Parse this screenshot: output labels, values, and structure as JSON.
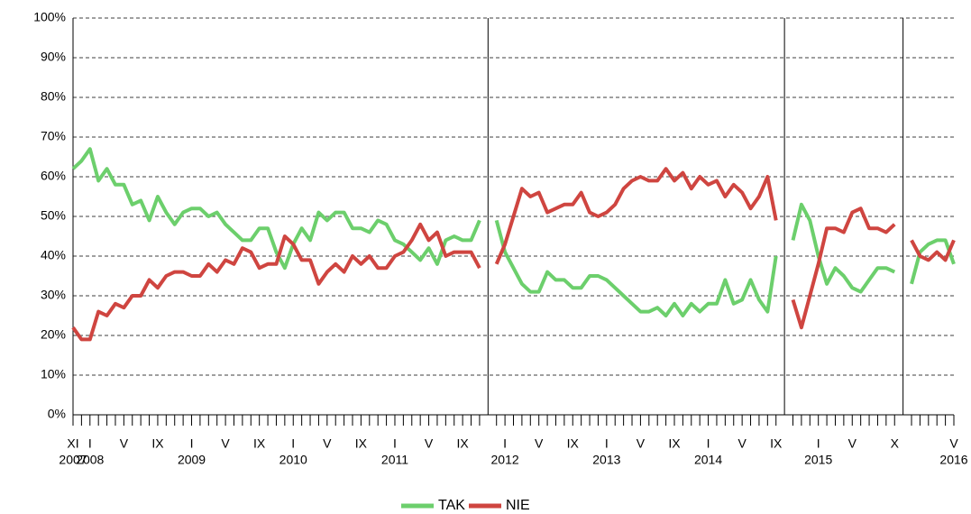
{
  "chart_data": {
    "type": "line",
    "categories": [
      "XI",
      null,
      "I",
      null,
      null,
      null,
      "V",
      null,
      null,
      null,
      "IX",
      null,
      null,
      null,
      "I",
      null,
      null,
      null,
      "V",
      null,
      null,
      null,
      "IX",
      null,
      null,
      null,
      "I",
      null,
      null,
      null,
      "V",
      null,
      null,
      null,
      "IX",
      null,
      null,
      null,
      "I",
      null,
      null,
      null,
      "V",
      null,
      null,
      null,
      "IX",
      null,
      null,
      null,
      null,
      "I",
      null,
      null,
      null,
      "V",
      null,
      null,
      null,
      "IX",
      null,
      null,
      null,
      "I",
      null,
      null,
      null,
      "V",
      null,
      null,
      null,
      "IX",
      null,
      null,
      null,
      "I",
      null,
      null,
      null,
      "V",
      null,
      null,
      null,
      "IX",
      null,
      null,
      null,
      null,
      "I",
      null,
      null,
      null,
      "V",
      null,
      null,
      null,
      null,
      "X",
      null,
      null,
      null,
      null,
      null,
      null,
      "V"
    ],
    "category_years": [
      "2007",
      null,
      "2008",
      null,
      null,
      null,
      null,
      null,
      null,
      null,
      null,
      null,
      null,
      null,
      "2009",
      null,
      null,
      null,
      null,
      null,
      null,
      null,
      null,
      null,
      null,
      null,
      "2010",
      null,
      null,
      null,
      null,
      null,
      null,
      null,
      null,
      null,
      null,
      null,
      "2011",
      null,
      null,
      null,
      null,
      null,
      null,
      null,
      null,
      null,
      null,
      null,
      null,
      "2012",
      null,
      null,
      null,
      null,
      null,
      null,
      null,
      null,
      null,
      null,
      null,
      "2013",
      null,
      null,
      null,
      null,
      null,
      null,
      null,
      null,
      null,
      null,
      null,
      "2014",
      null,
      null,
      null,
      null,
      null,
      null,
      null,
      null,
      null,
      null,
      null,
      null,
      "2015",
      null,
      null,
      null,
      null,
      null,
      null,
      null,
      null,
      null,
      null,
      null,
      null,
      null,
      null,
      null,
      "2016"
    ],
    "series": [
      {
        "name": "TAK",
        "color": "#6ccf6c",
        "values": [
          62,
          64,
          67,
          59,
          62,
          58,
          58,
          53,
          54,
          49,
          55,
          51,
          48,
          51,
          52,
          52,
          50,
          51,
          48,
          46,
          44,
          44,
          47,
          47,
          41,
          37,
          43,
          47,
          44,
          51,
          49,
          51,
          51,
          47,
          47,
          46,
          49,
          48,
          44,
          43,
          41,
          39,
          42,
          38,
          44,
          45,
          44,
          44,
          49,
          null,
          49,
          41,
          37,
          33,
          31,
          31,
          36,
          34,
          34,
          32,
          32,
          35,
          35,
          34,
          32,
          30,
          28,
          26,
          26,
          27,
          25,
          28,
          25,
          28,
          26,
          28,
          28,
          34,
          28,
          29,
          34,
          29,
          26,
          40,
          null,
          44,
          53,
          49,
          40,
          33,
          37,
          35,
          32,
          31,
          34,
          37,
          37,
          36,
          null,
          33,
          41,
          43,
          44,
          44,
          38
        ]
      },
      {
        "name": "NIE",
        "color": "#cf4540",
        "values": [
          22,
          19,
          19,
          26,
          25,
          28,
          27,
          30,
          30,
          34,
          32,
          35,
          36,
          36,
          35,
          35,
          38,
          36,
          39,
          38,
          42,
          41,
          37,
          38,
          38,
          45,
          43,
          39,
          39,
          33,
          36,
          38,
          36,
          40,
          38,
          40,
          37,
          37,
          40,
          41,
          44,
          48,
          44,
          46,
          40,
          41,
          41,
          41,
          37,
          null,
          38,
          43,
          50,
          57,
          55,
          56,
          51,
          52,
          53,
          53,
          56,
          51,
          50,
          51,
          53,
          57,
          59,
          60,
          59,
          59,
          62,
          59,
          61,
          57,
          60,
          58,
          59,
          55,
          58,
          56,
          52,
          55,
          60,
          49,
          null,
          29,
          22,
          30,
          38,
          47,
          47,
          46,
          51,
          52,
          47,
          47,
          46,
          48,
          null,
          44,
          40,
          39,
          41,
          39,
          44
        ]
      }
    ],
    "ylim": [
      0,
      100
    ],
    "yticks": [
      {
        "value": 0,
        "label": "0%"
      },
      {
        "value": 10,
        "label": "10%"
      },
      {
        "value": 20,
        "label": "20%"
      },
      {
        "value": 30,
        "label": "30%"
      },
      {
        "value": 40,
        "label": "40%"
      },
      {
        "value": 50,
        "label": "50%"
      },
      {
        "value": 60,
        "label": "60%"
      },
      {
        "value": 70,
        "label": "70%"
      },
      {
        "value": 80,
        "label": "80%"
      },
      {
        "value": 90,
        "label": "90%"
      },
      {
        "value": 100,
        "label": "100%"
      }
    ],
    "grid": true,
    "legend": "bottom"
  }
}
